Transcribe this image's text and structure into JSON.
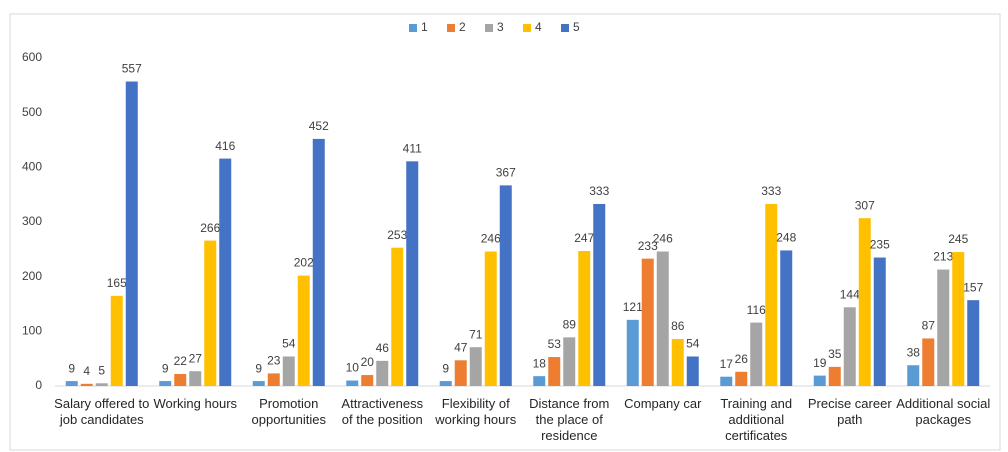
{
  "chart_data": {
    "type": "bar",
    "categories": [
      "Salary offered to job candidates",
      "Working hours",
      "Promotion opportunities",
      "Attractiveness of the position",
      "Flexibility of working hours",
      "Distance from the place of residence",
      "Company car",
      "Training and additional certificates",
      "Precise career path",
      "Additional social packages"
    ],
    "series": [
      {
        "name": "1",
        "color": "#5b9bd5",
        "values": [
          9,
          9,
          9,
          10,
          9,
          18,
          121,
          17,
          19,
          38
        ]
      },
      {
        "name": "2",
        "color": "#ed7d31",
        "values": [
          4,
          22,
          23,
          20,
          47,
          53,
          233,
          26,
          35,
          87
        ]
      },
      {
        "name": "3",
        "color": "#a5a5a5",
        "values": [
          5,
          27,
          54,
          46,
          71,
          89,
          246,
          116,
          144,
          213
        ]
      },
      {
        "name": "4",
        "color": "#ffc000",
        "values": [
          165,
          266,
          202,
          253,
          246,
          247,
          86,
          333,
          307,
          245
        ]
      },
      {
        "name": "5",
        "color": "#4472c4",
        "values": [
          557,
          416,
          452,
          411,
          367,
          333,
          54,
          248,
          235,
          157
        ]
      }
    ],
    "ylim": [
      0,
      600
    ],
    "yticks": [
      0,
      100,
      200,
      300,
      400,
      500,
      600
    ],
    "grid": false,
    "legend": "top"
  }
}
